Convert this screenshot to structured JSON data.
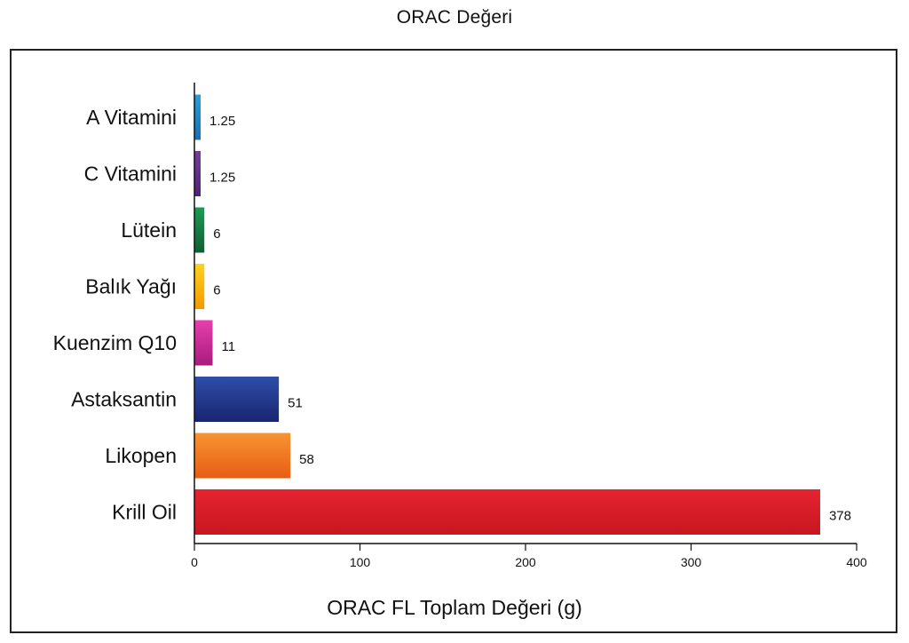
{
  "chart_data": {
    "type": "bar",
    "orientation": "horizontal",
    "title": "ORAC Değeri",
    "xlabel": "ORAC FL Toplam Değeri (g)",
    "ylabel": "",
    "categories": [
      "A Vitamini",
      "C Vitamini",
      "Lütein",
      "Balık Yağı",
      "Kuenzim Q10",
      "Astaksantin",
      "Likopen",
      "Krill Oil"
    ],
    "values": [
      1.25,
      1.25,
      6,
      6,
      11,
      51,
      58,
      378
    ],
    "value_labels": [
      "1.25",
      "1.25",
      "6",
      "6",
      "11",
      "51",
      "58",
      "378"
    ],
    "xlim": [
      0,
      400
    ],
    "xticks": [
      0,
      100,
      200,
      300,
      400
    ],
    "grid": false,
    "legend": "none",
    "bar_colors": [
      [
        "#2b9fd8",
        "#1a6fb0"
      ],
      [
        "#7a3d9c",
        "#4f2373"
      ],
      [
        "#1f9a55",
        "#0d5f34"
      ],
      [
        "#ffd21f",
        "#f29a00"
      ],
      [
        "#e83fae",
        "#a81c7c"
      ],
      [
        "#2e4fa8",
        "#1a2470"
      ],
      [
        "#f79433",
        "#e85d14"
      ],
      [
        "#e52530",
        "#c8161f"
      ]
    ]
  }
}
